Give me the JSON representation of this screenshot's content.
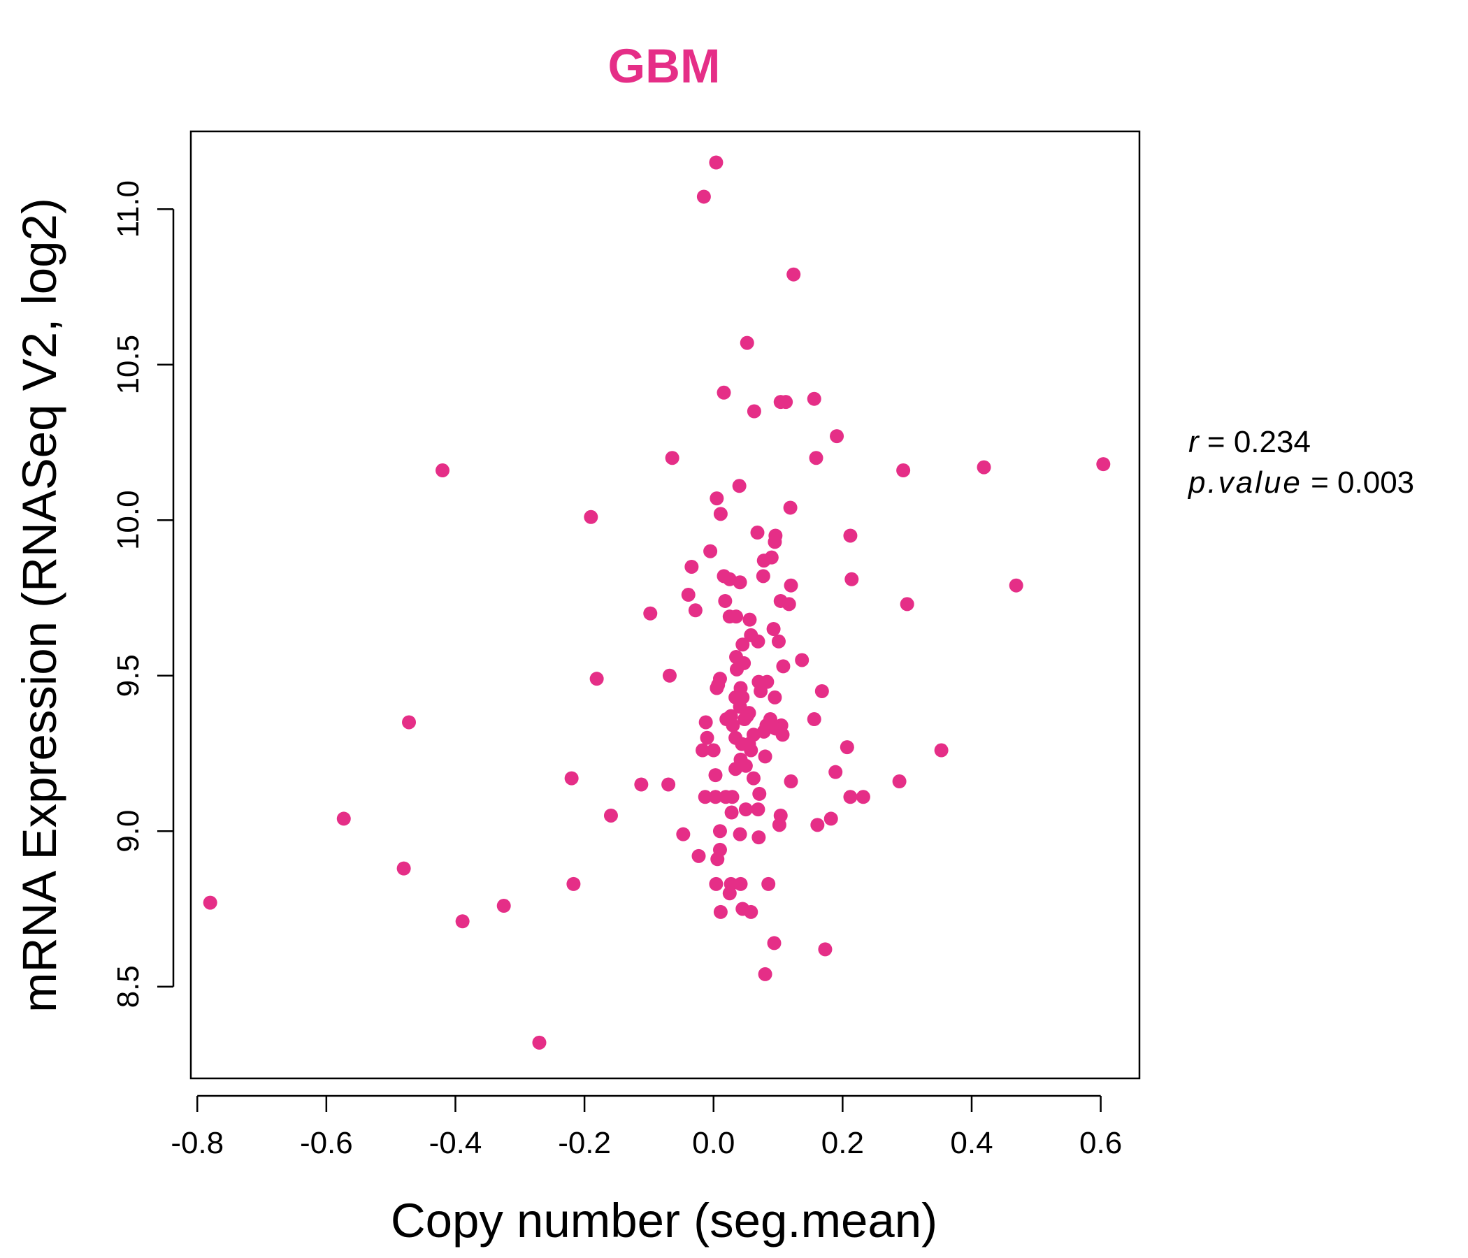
{
  "chart_data": {
    "type": "scatter",
    "title": "GBM",
    "title_color": "#e52e87",
    "point_color": "#e52e87",
    "xlabel": "Copy number (seg.mean)",
    "ylabel": "mRNA Expression (RNASeq V2, log2)",
    "xlim": [
      -0.81,
      0.66
    ],
    "ylim": [
      8.205,
      11.25
    ],
    "x_ticks": [
      -0.8,
      -0.6,
      -0.4,
      -0.2,
      0.0,
      0.2,
      0.4,
      0.6
    ],
    "x_tick_labels": [
      "-0.8",
      "-0.6",
      "-0.4",
      "-0.2",
      "0.0",
      "0.2",
      "0.4",
      "0.6"
    ],
    "y_ticks": [
      8.5,
      9.0,
      9.5,
      10.0,
      10.5,
      11.0
    ],
    "y_tick_labels": [
      "8.5",
      "9.0",
      "9.5",
      "10.0",
      "10.5",
      "11.0"
    ],
    "stats": {
      "r_label": "r",
      "r_value": "0.234",
      "p_label": "p.value",
      "p_value": "0.003"
    },
    "points": [
      [
        0.004,
        11.15
      ],
      [
        -0.015,
        11.04
      ],
      [
        0.124,
        10.79
      ],
      [
        0.052,
        10.57
      ],
      [
        0.016,
        10.41
      ],
      [
        0.063,
        10.35
      ],
      [
        0.104,
        10.38
      ],
      [
        0.112,
        10.38
      ],
      [
        0.156,
        10.39
      ],
      [
        0.191,
        10.27
      ],
      [
        0.159,
        10.2
      ],
      [
        -0.064,
        10.2
      ],
      [
        -0.42,
        10.16
      ],
      [
        0.294,
        10.16
      ],
      [
        0.419,
        10.17
      ],
      [
        0.604,
        10.18
      ],
      [
        0.04,
        10.11
      ],
      [
        0.005,
        10.07
      ],
      [
        0.011,
        10.02
      ],
      [
        0.119,
        10.04
      ],
      [
        -0.19,
        10.01
      ],
      [
        0.068,
        9.96
      ],
      [
        0.096,
        9.95
      ],
      [
        0.212,
        9.95
      ],
      [
        0.095,
        9.93
      ],
      [
        -0.005,
        9.9
      ],
      [
        0.09,
        9.88
      ],
      [
        0.078,
        9.87
      ],
      [
        -0.034,
        9.85
      ],
      [
        0.016,
        9.82
      ],
      [
        0.025,
        9.81
      ],
      [
        0.077,
        9.82
      ],
      [
        0.041,
        9.8
      ],
      [
        0.12,
        9.79
      ],
      [
        0.214,
        9.81
      ],
      [
        0.469,
        9.79
      ],
      [
        -0.039,
        9.76
      ],
      [
        0.018,
        9.74
      ],
      [
        0.104,
        9.74
      ],
      [
        0.117,
        9.73
      ],
      [
        0.3,
        9.73
      ],
      [
        -0.028,
        9.71
      ],
      [
        -0.098,
        9.7
      ],
      [
        0.025,
        9.69
      ],
      [
        0.035,
        9.69
      ],
      [
        0.056,
        9.68
      ],
      [
        0.093,
        9.65
      ],
      [
        0.058,
        9.63
      ],
      [
        0.069,
        9.61
      ],
      [
        0.101,
        9.61
      ],
      [
        0.045,
        9.6
      ],
      [
        0.035,
        9.56
      ],
      [
        0.047,
        9.54
      ],
      [
        0.137,
        9.55
      ],
      [
        0.108,
        9.53
      ],
      [
        0.036,
        9.52
      ],
      [
        -0.068,
        9.5
      ],
      [
        -0.181,
        9.49
      ],
      [
        0.01,
        9.49
      ],
      [
        0.007,
        9.47
      ],
      [
        0.07,
        9.48
      ],
      [
        0.083,
        9.48
      ],
      [
        0.005,
        9.46
      ],
      [
        0.042,
        9.46
      ],
      [
        0.073,
        9.45
      ],
      [
        0.034,
        9.43
      ],
      [
        0.045,
        9.43
      ],
      [
        0.168,
        9.45
      ],
      [
        0.095,
        9.43
      ],
      [
        0.041,
        9.4
      ],
      [
        0.055,
        9.38
      ],
      [
        0.027,
        9.37
      ],
      [
        0.02,
        9.36
      ],
      [
        0.052,
        9.37
      ],
      [
        0.048,
        9.36
      ],
      [
        0.156,
        9.36
      ],
      [
        0.088,
        9.36
      ],
      [
        -0.472,
        9.35
      ],
      [
        -0.012,
        9.35
      ],
      [
        0.03,
        9.34
      ],
      [
        0.082,
        9.34
      ],
      [
        0.105,
        9.34
      ],
      [
        0.096,
        9.33
      ],
      [
        0.062,
        9.31
      ],
      [
        0.078,
        9.32
      ],
      [
        0.107,
        9.31
      ],
      [
        -0.01,
        9.3
      ],
      [
        0.034,
        9.3
      ],
      [
        0.044,
        9.28
      ],
      [
        0.055,
        9.28
      ],
      [
        -0.017,
        9.26
      ],
      [
        0.0,
        9.26
      ],
      [
        0.207,
        9.27
      ],
      [
        0.353,
        9.26
      ],
      [
        0.058,
        9.26
      ],
      [
        0.042,
        9.23
      ],
      [
        0.08,
        9.24
      ],
      [
        0.05,
        9.21
      ],
      [
        0.034,
        9.2
      ],
      [
        0.189,
        9.19
      ],
      [
        -0.22,
        9.17
      ],
      [
        0.003,
        9.18
      ],
      [
        0.062,
        9.17
      ],
      [
        0.12,
        9.16
      ],
      [
        -0.112,
        9.15
      ],
      [
        -0.07,
        9.15
      ],
      [
        0.288,
        9.16
      ],
      [
        -0.013,
        9.11
      ],
      [
        0.003,
        9.11
      ],
      [
        0.019,
        9.11
      ],
      [
        0.029,
        9.11
      ],
      [
        0.071,
        9.12
      ],
      [
        0.212,
        9.11
      ],
      [
        0.232,
        9.11
      ],
      [
        0.028,
        9.06
      ],
      [
        0.05,
        9.07
      ],
      [
        0.069,
        9.07
      ],
      [
        0.104,
        9.05
      ],
      [
        -0.159,
        9.05
      ],
      [
        -0.573,
        9.04
      ],
      [
        0.161,
        9.02
      ],
      [
        0.182,
        9.04
      ],
      [
        0.102,
        9.02
      ],
      [
        0.01,
        9.0
      ],
      [
        -0.047,
        8.99
      ],
      [
        0.041,
        8.99
      ],
      [
        0.07,
        8.98
      ],
      [
        0.01,
        8.94
      ],
      [
        -0.023,
        8.92
      ],
      [
        0.006,
        8.91
      ],
      [
        -0.48,
        8.88
      ],
      [
        -0.217,
        8.83
      ],
      [
        0.004,
        8.83
      ],
      [
        0.027,
        8.83
      ],
      [
        0.042,
        8.83
      ],
      [
        0.085,
        8.83
      ],
      [
        0.025,
        8.8
      ],
      [
        -0.78,
        8.77
      ],
      [
        0.045,
        8.75
      ],
      [
        0.058,
        8.74
      ],
      [
        -0.325,
        8.76
      ],
      [
        0.011,
        8.74
      ],
      [
        -0.389,
        8.71
      ],
      [
        0.094,
        8.64
      ],
      [
        0.173,
        8.62
      ],
      [
        0.08,
        8.54
      ],
      [
        -0.27,
        8.32
      ]
    ]
  }
}
